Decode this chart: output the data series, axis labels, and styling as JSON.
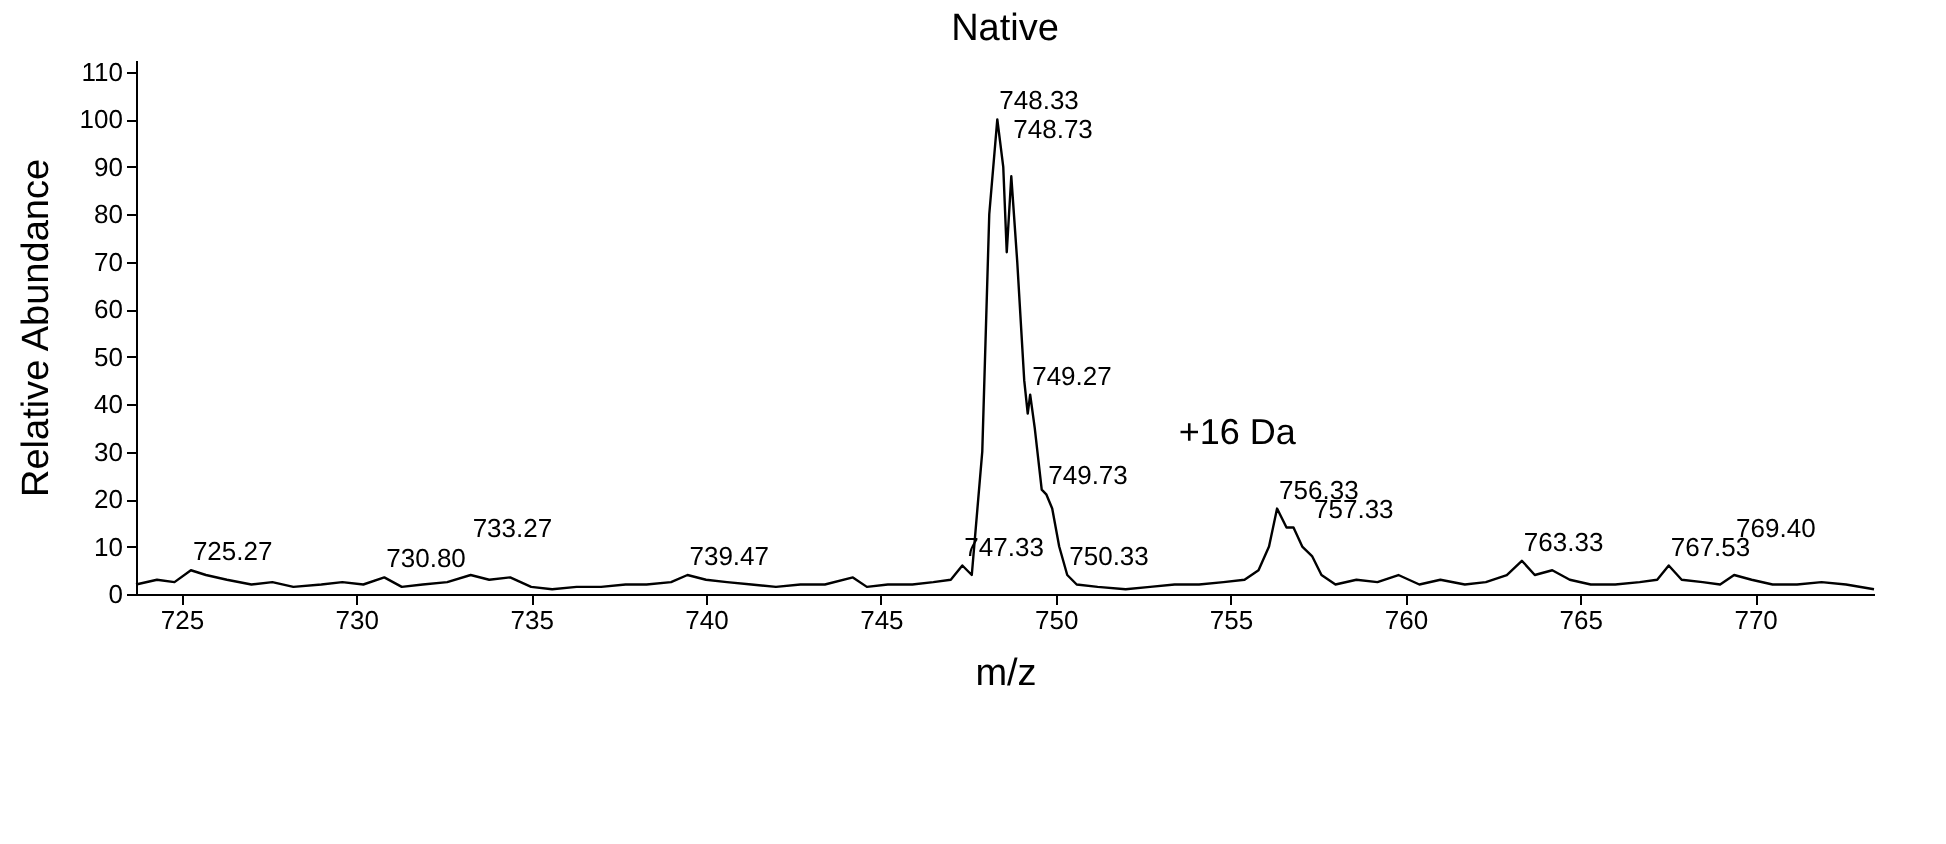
{
  "chart_data": {
    "type": "line",
    "title": "Native",
    "xlabel": "m/z",
    "ylabel": "Relative Abundance",
    "x": [
      723.7,
      724.3,
      724.8,
      725.27,
      725.7,
      726.3,
      727,
      727.6,
      728.2,
      729,
      729.6,
      730.2,
      730.8,
      731.3,
      731.9,
      732.6,
      733.27,
      733.8,
      734.4,
      735,
      735.6,
      736.3,
      737,
      737.7,
      738.3,
      739,
      739.47,
      740,
      740.6,
      741.3,
      742,
      742.7,
      743.4,
      744.2,
      744.6,
      745.2,
      745.9,
      746.5,
      747,
      747.33,
      747.6,
      747.9,
      748.1,
      748.33,
      748.5,
      748.6,
      748.73,
      748.9,
      749.1,
      749.2,
      749.27,
      749.4,
      749.6,
      749.73,
      749.9,
      750.1,
      750.33,
      750.6,
      751.2,
      752,
      752.7,
      753.4,
      754.1,
      754.8,
      755.4,
      755.8,
      756.1,
      756.33,
      756.6,
      756.8,
      757.05,
      757.33,
      757.6,
      758,
      758.6,
      759.2,
      759.8,
      760.4,
      761,
      761.7,
      762.3,
      762.9,
      763.33,
      763.7,
      764.2,
      764.7,
      765.3,
      766,
      766.7,
      767.2,
      767.53,
      767.9,
      768.5,
      769,
      769.4,
      769.9,
      770.5,
      771.2,
      771.9,
      772.6,
      773.4
    ],
    "values": [
      2,
      3,
      2.5,
      5,
      4,
      3,
      2,
      2.5,
      1.5,
      2,
      2.5,
      2,
      3.5,
      1.5,
      2,
      2.5,
      4,
      3,
      3.5,
      1.5,
      1,
      1.5,
      1.5,
      2,
      2,
      2.5,
      4,
      3,
      2.5,
      2,
      1.5,
      2,
      2,
      3.5,
      1.5,
      2,
      2,
      2.5,
      3,
      6,
      4,
      30,
      80,
      100,
      90,
      72,
      88,
      70,
      45,
      38,
      42,
      35,
      22,
      21,
      18,
      10,
      4,
      2,
      1.5,
      1,
      1.5,
      2,
      2,
      2.5,
      3,
      5,
      10,
      18,
      14,
      14,
      10,
      8,
      4,
      2,
      3,
      2.5,
      4,
      2,
      3,
      2,
      2.5,
      4,
      7,
      4,
      5,
      3,
      2,
      2,
      2.5,
      3,
      6,
      3,
      2.5,
      2,
      4,
      3,
      2,
      2,
      2.5,
      2,
      1
    ],
    "color": "#000000",
    "xlim": [
      723.7,
      773.4
    ],
    "ylim": [
      0,
      112.5
    ],
    "xticks": [
      725,
      730,
      735,
      740,
      745,
      750,
      755,
      760,
      765,
      770
    ],
    "yticks": [
      0,
      10,
      20,
      30,
      40,
      50,
      60,
      70,
      80,
      90,
      100,
      110
    ],
    "grid": false,
    "annotations": [
      {
        "text": "725.27",
        "x": 725.27,
        "y": 5
      },
      {
        "text": "730.80",
        "x": 730.8,
        "y": 3.5
      },
      {
        "text": "733.27",
        "x": 733.27,
        "y": 4
      },
      {
        "text": "739.47",
        "x": 739.47,
        "y": 4
      },
      {
        "text": "747.33",
        "x": 747.33,
        "y": 6
      },
      {
        "text": "748.33",
        "x": 748.33,
        "y": 100
      },
      {
        "text": "748.73",
        "x": 748.73,
        "y": 88
      },
      {
        "text": "749.27",
        "x": 749.27,
        "y": 42
      },
      {
        "text": "749.73",
        "x": 749.73,
        "y": 21
      },
      {
        "text": "750.33",
        "x": 750.33,
        "y": 4
      },
      {
        "text": "756.33",
        "x": 756.33,
        "y": 18
      },
      {
        "text": "757.33",
        "x": 757.33,
        "y": 8
      },
      {
        "text": "763.33",
        "x": 763.33,
        "y": 7
      },
      {
        "text": "767.53",
        "x": 767.53,
        "y": 6
      },
      {
        "text": "769.40",
        "x": 769.4,
        "y": 4
      },
      "+16 Da"
    ]
  }
}
